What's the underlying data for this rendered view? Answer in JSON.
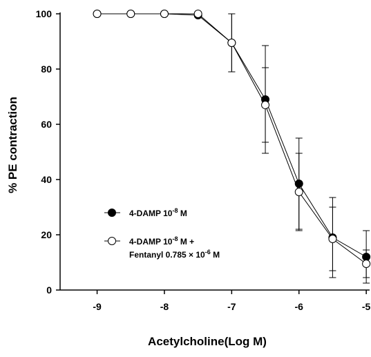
{
  "chart_data": {
    "type": "line",
    "title": "",
    "xlabel": "Acetylcholine(Log M)",
    "ylabel": "% PE contraction",
    "xlim": [
      -9.55,
      -4.95
    ],
    "ylim": [
      0,
      100
    ],
    "xticks": [
      "-9",
      "-8",
      "-7",
      "-6",
      "-5"
    ],
    "xtick_values": [
      -9,
      -8,
      -7,
      -6,
      -5
    ],
    "yticks": [
      "0",
      "20",
      "40",
      "60",
      "80",
      "100"
    ],
    "ytick_values": [
      0,
      20,
      40,
      60,
      80,
      100
    ],
    "grid": false,
    "legend_position": "lower-left",
    "series": [
      {
        "legend_text": "4-DAMP 10",
        "legend_exp": "-8",
        "legend_suffix": "M",
        "marker": "filled-circle",
        "color": "#000000",
        "x": [
          -9,
          -8.5,
          -8,
          -7.5,
          -7,
          -6.5,
          -6,
          -5.5,
          -5
        ],
        "y": [
          100,
          100,
          100,
          99.5,
          89.5,
          69,
          38.5,
          19,
          12
        ],
        "err": [
          0,
          0,
          0,
          0,
          10.5,
          19.5,
          16.5,
          14.5,
          9.5
        ]
      },
      {
        "legend_text": "4-DAMP 10",
        "legend_exp": "-8",
        "legend_suffix": "M +",
        "legend_line2": "Fentanyl 0.785 × 10",
        "legend_line2_exp": "-6",
        "legend_line2_suffix": "M",
        "marker": "open-circle",
        "color": "#000000",
        "x": [
          -9,
          -8.5,
          -8,
          -7.5,
          -7,
          -6.5,
          -6,
          -5.5,
          -5
        ],
        "y": [
          100,
          100,
          100,
          100,
          89.5,
          67,
          35.5,
          18.5,
          9.5
        ],
        "err": [
          0,
          0,
          0,
          0,
          10.5,
          13.5,
          14,
          11.5,
          5
        ]
      }
    ]
  }
}
